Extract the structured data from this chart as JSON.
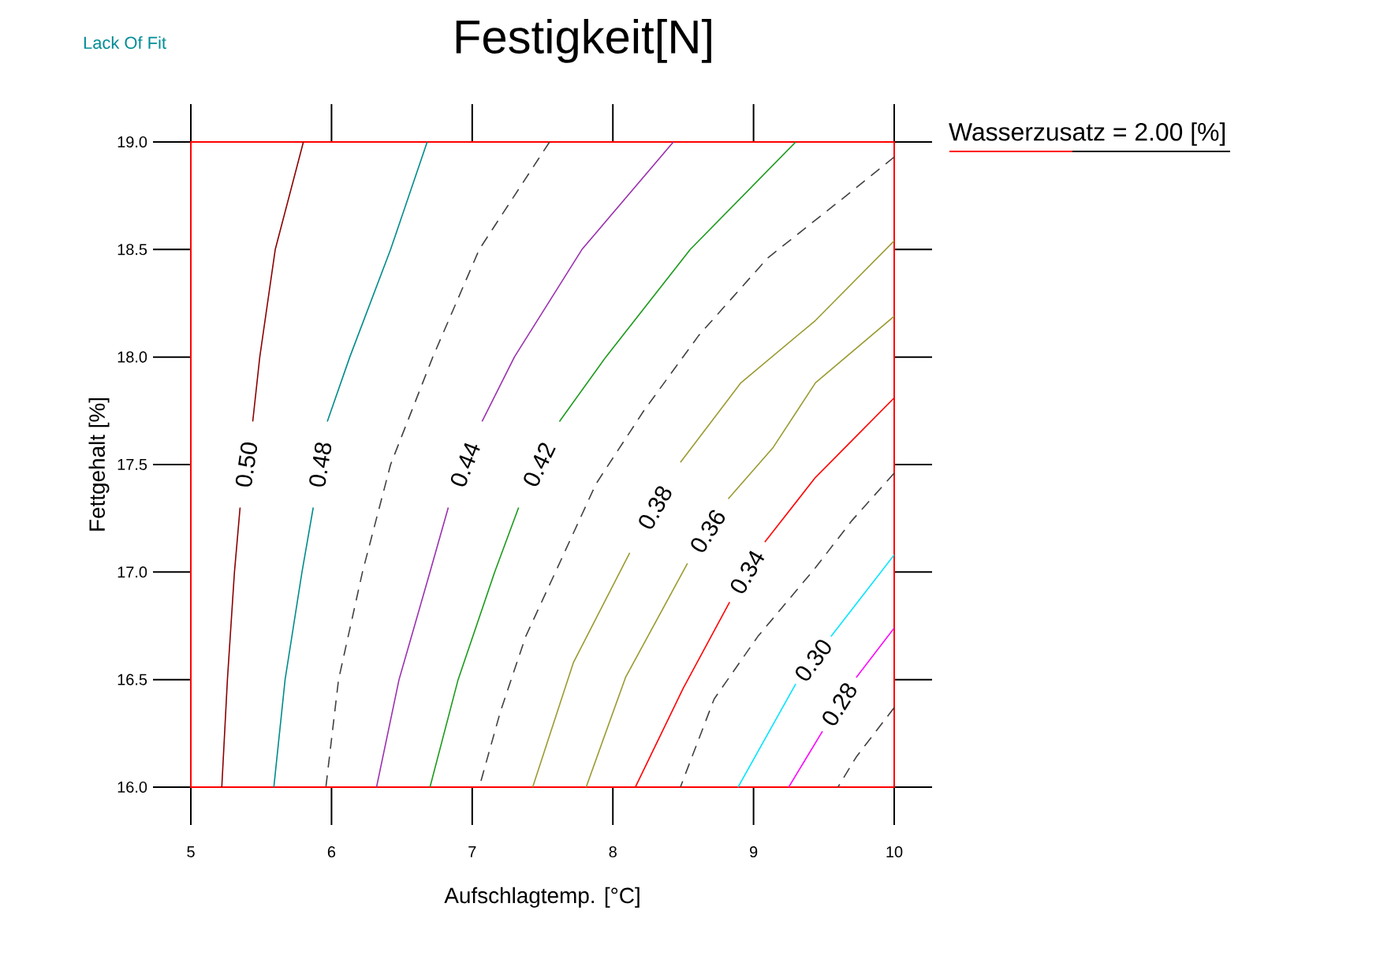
{
  "chart_data": {
    "type": "line",
    "title": "Festigkeit[N]",
    "xlabel": "Aufschlagtemp. [°C]",
    "ylabel": "Fettgehalt [%]",
    "annotations": [
      "Lack Of Fit",
      "Wasserzusatz =  2.00 [%]"
    ],
    "xlim": [
      5,
      10
    ],
    "ylim": [
      16,
      19
    ],
    "xticks": [
      5,
      6,
      7,
      8,
      9,
      10
    ],
    "yticks": [
      {
        "value": 16,
        "label": "16.0"
      },
      16.5,
      {
        "value": 17,
        "label": "17.0"
      },
      17.5,
      {
        "value": 18,
        "label": "18.0"
      },
      18.5,
      {
        "value": 19,
        "label": "19.0"
      }
    ],
    "series": [
      {
        "name": "0.50",
        "color": "#8b0000",
        "x": [
          5.8,
          5.6,
          5.49,
          5.44,
          null,
          5.35,
          5.31,
          5.26,
          5.22
        ],
        "values": [
          19,
          18.5,
          18,
          17.7,
          null,
          17.3,
          17,
          16.5,
          16
        ]
      },
      {
        "name": "0.48",
        "color": "#008b8b",
        "x": [
          6.68,
          6.42,
          6.13,
          5.97,
          null,
          5.87,
          5.79,
          5.67,
          5.59
        ],
        "values": [
          19,
          18.5,
          18,
          17.7,
          null,
          17.3,
          17,
          16.5,
          16
        ]
      },
      {
        "color": "#404040",
        "line_style": "dashed",
        "x": [
          7.55,
          7.05,
          6.72,
          6.42,
          6.22,
          6.05,
          5.96
        ],
        "values": [
          19,
          18.5,
          18,
          17.5,
          17,
          16.5,
          16
        ]
      },
      {
        "name": "0.44",
        "color": "#9b30b0",
        "x": [
          8.43,
          7.78,
          7.3,
          7.07,
          null,
          6.83,
          6.7,
          6.48,
          6.32
        ],
        "values": [
          19,
          18.5,
          18,
          17.7,
          null,
          17.3,
          17,
          16.5,
          16
        ]
      },
      {
        "name": "0.42",
        "color": "#1a9a1a",
        "x": [
          9.3,
          8.55,
          7.95,
          7.62,
          null,
          7.33,
          7.16,
          6.9,
          6.7
        ],
        "values": [
          19,
          18.5,
          18,
          17.7,
          null,
          17.3,
          17,
          16.5,
          16
        ]
      },
      {
        "color": "#404040",
        "line_style": "dashed",
        "x": [
          10.0,
          9.62,
          9.1,
          8.61,
          8.22,
          7.88,
          7.62,
          7.38,
          7.2,
          7.05
        ],
        "values": [
          18.93,
          18.73,
          18.46,
          18.1,
          17.75,
          17.41,
          17.04,
          16.7,
          16.35,
          16
        ]
      },
      {
        "name": "0.38",
        "color": "#9a9a30",
        "x": [
          10.0,
          9.44,
          8.91,
          8.48,
          null,
          8.12,
          7.72,
          7.43
        ],
        "values": [
          18.54,
          18.17,
          17.88,
          17.51,
          null,
          17.09,
          16.58,
          16
        ]
      },
      {
        "name": "0.36",
        "color": "#9a9a30",
        "x": [
          10.0,
          9.44,
          9.14,
          8.82,
          null,
          8.53,
          8.09,
          7.81
        ],
        "values": [
          18.19,
          17.88,
          17.58,
          17.34,
          null,
          17.04,
          16.51,
          16
        ]
      },
      {
        "name": "0.34",
        "color": "#ff0000",
        "x": [
          10.0,
          9.44,
          9.08,
          null,
          8.83,
          8.5,
          8.16
        ],
        "values": [
          17.81,
          17.44,
          17.14,
          null,
          16.86,
          16.46,
          16
        ]
      },
      {
        "color": "#404040",
        "line_style": "dashed",
        "x": [
          10.0,
          9.7,
          9.44,
          9.03,
          8.72,
          8.48
        ],
        "values": [
          17.46,
          17.24,
          17.02,
          16.7,
          16.41,
          16
        ]
      },
      {
        "name": "0.30",
        "color": "#00e5ff",
        "x": [
          10.0,
          9.55,
          null,
          9.3,
          8.89
        ],
        "values": [
          17.08,
          16.7,
          null,
          16.48,
          16
        ]
      },
      {
        "name": "0.28",
        "color": "#ff00ff",
        "x": [
          10.0,
          9.73,
          null,
          9.49,
          9.25
        ],
        "values": [
          16.74,
          16.51,
          null,
          16.26,
          16
        ]
      },
      {
        "color": "#404040",
        "line_style": "dashed",
        "x": [
          10.0,
          9.73,
          9.6
        ],
        "values": [
          16.37,
          16.14,
          16
        ]
      }
    ]
  }
}
